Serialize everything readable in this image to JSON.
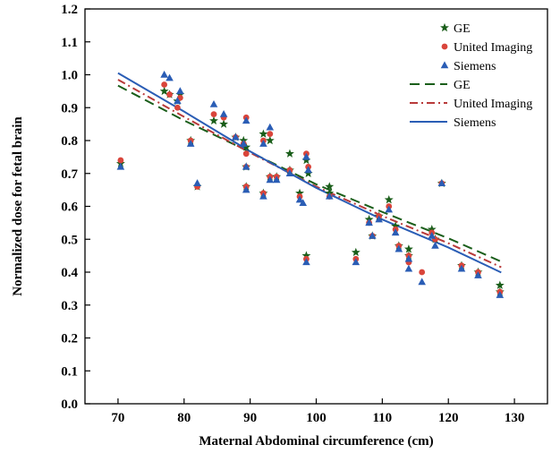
{
  "chart_data": {
    "type": "scatter",
    "title": "",
    "xlabel": "Maternal Abdominal circumference (cm)",
    "ylabel": "Normalized dose for fetal brain",
    "xlim": [
      65,
      135
    ],
    "ylim": [
      0.0,
      1.2
    ],
    "x_ticks": [
      "70",
      "80",
      "90",
      "100",
      "110",
      "120",
      "130"
    ],
    "y_ticks": [
      "0.0",
      "0.1",
      "0.2",
      "0.3",
      "0.4",
      "0.5",
      "0.6",
      "0.7",
      "0.8",
      "0.9",
      "1.0",
      "1.1",
      "1.2"
    ],
    "grid": false,
    "legend_position": "top-right",
    "scatter_series": [
      {
        "name": "GE",
        "marker": "star",
        "color": "#1a5e1a",
        "points": [
          [
            70.4,
            0.73
          ],
          [
            77.0,
            0.95
          ],
          [
            77.8,
            0.94
          ],
          [
            79.0,
            0.92
          ],
          [
            79.4,
            0.94
          ],
          [
            81.0,
            0.8
          ],
          [
            82.0,
            0.66
          ],
          [
            84.5,
            0.86
          ],
          [
            86.0,
            0.85
          ],
          [
            87.8,
            0.81
          ],
          [
            89.0,
            0.8
          ],
          [
            89.4,
            0.78
          ],
          [
            89.4,
            0.72
          ],
          [
            89.4,
            0.66
          ],
          [
            92.0,
            0.82
          ],
          [
            92.0,
            0.64
          ],
          [
            93.0,
            0.8
          ],
          [
            93.0,
            0.69
          ],
          [
            94.0,
            0.69
          ],
          [
            96.0,
            0.76
          ],
          [
            96.0,
            0.71
          ],
          [
            97.5,
            0.64
          ],
          [
            98.5,
            0.74
          ],
          [
            98.5,
            0.45
          ],
          [
            98.8,
            0.7
          ],
          [
            102.0,
            0.66
          ],
          [
            102.0,
            0.64
          ],
          [
            106.0,
            0.46
          ],
          [
            108.0,
            0.56
          ],
          [
            108.5,
            0.51
          ],
          [
            109.5,
            0.57
          ],
          [
            111.0,
            0.62
          ],
          [
            112.0,
            0.54
          ],
          [
            112.5,
            0.48
          ],
          [
            114.0,
            0.47
          ],
          [
            114.0,
            0.45
          ],
          [
            117.5,
            0.53
          ],
          [
            118.0,
            0.5
          ],
          [
            119.0,
            0.67
          ],
          [
            122.0,
            0.42
          ],
          [
            124.5,
            0.4
          ],
          [
            127.8,
            0.36
          ],
          [
            127.8,
            0.34
          ]
        ]
      },
      {
        "name": "United Imaging",
        "marker": "circle",
        "color": "#d9453b",
        "points": [
          [
            70.4,
            0.74
          ],
          [
            77.0,
            0.97
          ],
          [
            77.8,
            0.94
          ],
          [
            79.0,
            0.9
          ],
          [
            79.4,
            0.93
          ],
          [
            81.0,
            0.8
          ],
          [
            82.0,
            0.66
          ],
          [
            84.5,
            0.88
          ],
          [
            86.0,
            0.87
          ],
          [
            87.8,
            0.81
          ],
          [
            89.0,
            0.79
          ],
          [
            89.4,
            0.87
          ],
          [
            89.4,
            0.76
          ],
          [
            89.4,
            0.72
          ],
          [
            89.4,
            0.66
          ],
          [
            92.0,
            0.8
          ],
          [
            92.0,
            0.64
          ],
          [
            93.0,
            0.82
          ],
          [
            93.0,
            0.69
          ],
          [
            94.0,
            0.69
          ],
          [
            96.0,
            0.71
          ],
          [
            97.5,
            0.63
          ],
          [
            98.5,
            0.76
          ],
          [
            98.5,
            0.44
          ],
          [
            98.8,
            0.72
          ],
          [
            102.0,
            0.63
          ],
          [
            106.0,
            0.44
          ],
          [
            108.0,
            0.55
          ],
          [
            108.5,
            0.51
          ],
          [
            109.5,
            0.57
          ],
          [
            111.0,
            0.6
          ],
          [
            112.0,
            0.53
          ],
          [
            112.5,
            0.48
          ],
          [
            114.0,
            0.45
          ],
          [
            114.0,
            0.43
          ],
          [
            116.0,
            0.4
          ],
          [
            117.5,
            0.52
          ],
          [
            118.0,
            0.5
          ],
          [
            119.0,
            0.67
          ],
          [
            122.0,
            0.42
          ],
          [
            124.5,
            0.4
          ],
          [
            127.8,
            0.34
          ]
        ]
      },
      {
        "name": "Siemens",
        "marker": "triangle",
        "color": "#2a5db5",
        "points": [
          [
            70.4,
            0.72
          ],
          [
            77.0,
            1.0
          ],
          [
            77.8,
            0.99
          ],
          [
            79.0,
            0.92
          ],
          [
            79.4,
            0.95
          ],
          [
            81.0,
            0.79
          ],
          [
            82.0,
            0.67
          ],
          [
            84.5,
            0.91
          ],
          [
            86.0,
            0.88
          ],
          [
            87.8,
            0.81
          ],
          [
            89.0,
            0.79
          ],
          [
            89.4,
            0.86
          ],
          [
            89.4,
            0.72
          ],
          [
            89.4,
            0.65
          ],
          [
            92.0,
            0.63
          ],
          [
            92.0,
            0.79
          ],
          [
            93.0,
            0.84
          ],
          [
            93.0,
            0.68
          ],
          [
            94.0,
            0.68
          ],
          [
            96.0,
            0.7
          ],
          [
            97.5,
            0.62
          ],
          [
            98.0,
            0.61
          ],
          [
            98.5,
            0.75
          ],
          [
            98.5,
            0.43
          ],
          [
            98.8,
            0.71
          ],
          [
            102.0,
            0.63
          ],
          [
            106.0,
            0.43
          ],
          [
            108.0,
            0.55
          ],
          [
            108.5,
            0.51
          ],
          [
            109.5,
            0.56
          ],
          [
            111.0,
            0.59
          ],
          [
            112.0,
            0.52
          ],
          [
            112.5,
            0.47
          ],
          [
            114.0,
            0.44
          ],
          [
            114.0,
            0.41
          ],
          [
            116.0,
            0.37
          ],
          [
            117.5,
            0.51
          ],
          [
            118.0,
            0.48
          ],
          [
            119.0,
            0.67
          ],
          [
            122.0,
            0.41
          ],
          [
            124.5,
            0.39
          ],
          [
            127.8,
            0.33
          ]
        ]
      }
    ],
    "fit_series": [
      {
        "name": "GE",
        "style": "dashed",
        "color": "#1a5e1a",
        "x": [
          70,
          80,
          90,
          100,
          110,
          120,
          128
        ],
        "y": [
          0.967,
          0.861,
          0.765,
          0.667,
          0.583,
          0.503,
          0.432
        ]
      },
      {
        "name": "United Imaging",
        "style": "dashdot",
        "color": "#b83a3a",
        "x": [
          70,
          80,
          90,
          100,
          110,
          120,
          128
        ],
        "y": [
          0.985,
          0.872,
          0.763,
          0.66,
          0.571,
          0.488,
          0.415
        ]
      },
      {
        "name": "Siemens",
        "style": "solid",
        "color": "#2a5db5",
        "x": [
          70,
          80,
          90,
          100,
          110,
          120,
          128
        ],
        "y": [
          1.005,
          0.888,
          0.767,
          0.656,
          0.56,
          0.475,
          0.399
        ]
      }
    ]
  }
}
